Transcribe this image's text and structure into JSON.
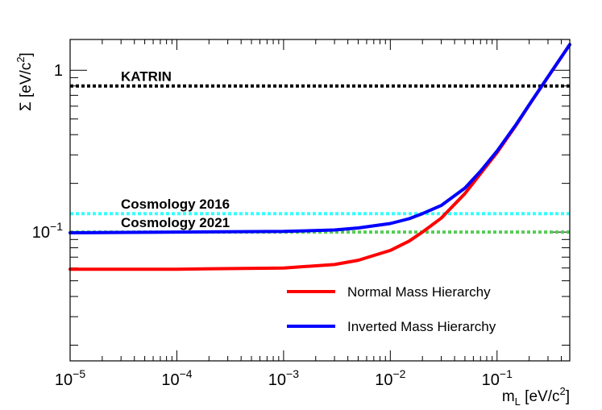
{
  "chart_data": {
    "type": "line",
    "title": "",
    "xlabel": "m_L [eV/c^2]",
    "ylabel": "Σ [eV/c^2]",
    "x_scale": "log",
    "y_scale": "log",
    "xlim": [
      1e-05,
      0.48
    ],
    "ylim": [
      0.016,
      1.55
    ],
    "grid": false,
    "legend_position": "bottom-right",
    "x_ticks": [
      {
        "value": 1e-05,
        "base": "10",
        "exp": "−5"
      },
      {
        "value": 0.0001,
        "base": "10",
        "exp": "−4"
      },
      {
        "value": 0.001,
        "base": "10",
        "exp": "−3"
      },
      {
        "value": 0.01,
        "base": "10",
        "exp": "−2"
      },
      {
        "value": 0.1,
        "base": "10",
        "exp": "−1"
      }
    ],
    "y_ticks": [
      {
        "value": 0.1,
        "base": "10",
        "exp": "−1"
      },
      {
        "value": 1,
        "base": "1",
        "exp": ""
      }
    ],
    "x_axis_title": {
      "main": "m",
      "sub": "L",
      "rest": " [eV/c",
      "sup": "2",
      "end": "]"
    },
    "y_axis_title": {
      "main": "Σ [eV/c",
      "sup": "2",
      "end": "]"
    },
    "series": [
      {
        "name": "Normal Mass Hierarchy",
        "color": "#ff0000",
        "x": [
          1e-05,
          0.0001,
          0.001,
          0.003,
          0.005,
          0.01,
          0.015,
          0.02,
          0.03,
          0.05,
          0.07,
          0.1,
          0.15,
          0.2,
          0.3,
          0.48
        ],
        "y": [
          0.059,
          0.059,
          0.06,
          0.063,
          0.067,
          0.077,
          0.088,
          0.1,
          0.122,
          0.173,
          0.23,
          0.31,
          0.455,
          0.61,
          0.91,
          1.44
        ]
      },
      {
        "name": "Inverted Mass Hierarchy",
        "color": "#0000ff",
        "x": [
          1e-05,
          0.0001,
          0.001,
          0.003,
          0.005,
          0.01,
          0.015,
          0.02,
          0.03,
          0.05,
          0.07,
          0.1,
          0.15,
          0.2,
          0.3,
          0.48
        ],
        "y": [
          0.099,
          0.1,
          0.101,
          0.103,
          0.106,
          0.113,
          0.121,
          0.13,
          0.146,
          0.187,
          0.238,
          0.317,
          0.46,
          0.612,
          0.912,
          1.44
        ]
      }
    ],
    "reference_lines": [
      {
        "label": "KATRIN",
        "y": 0.8,
        "color": "#000000"
      },
      {
        "label": "Cosmology 2016",
        "y": 0.13,
        "color": "#33ffff"
      },
      {
        "label": "Cosmology 2021",
        "y": 0.1,
        "color": "#55cc55"
      }
    ]
  }
}
